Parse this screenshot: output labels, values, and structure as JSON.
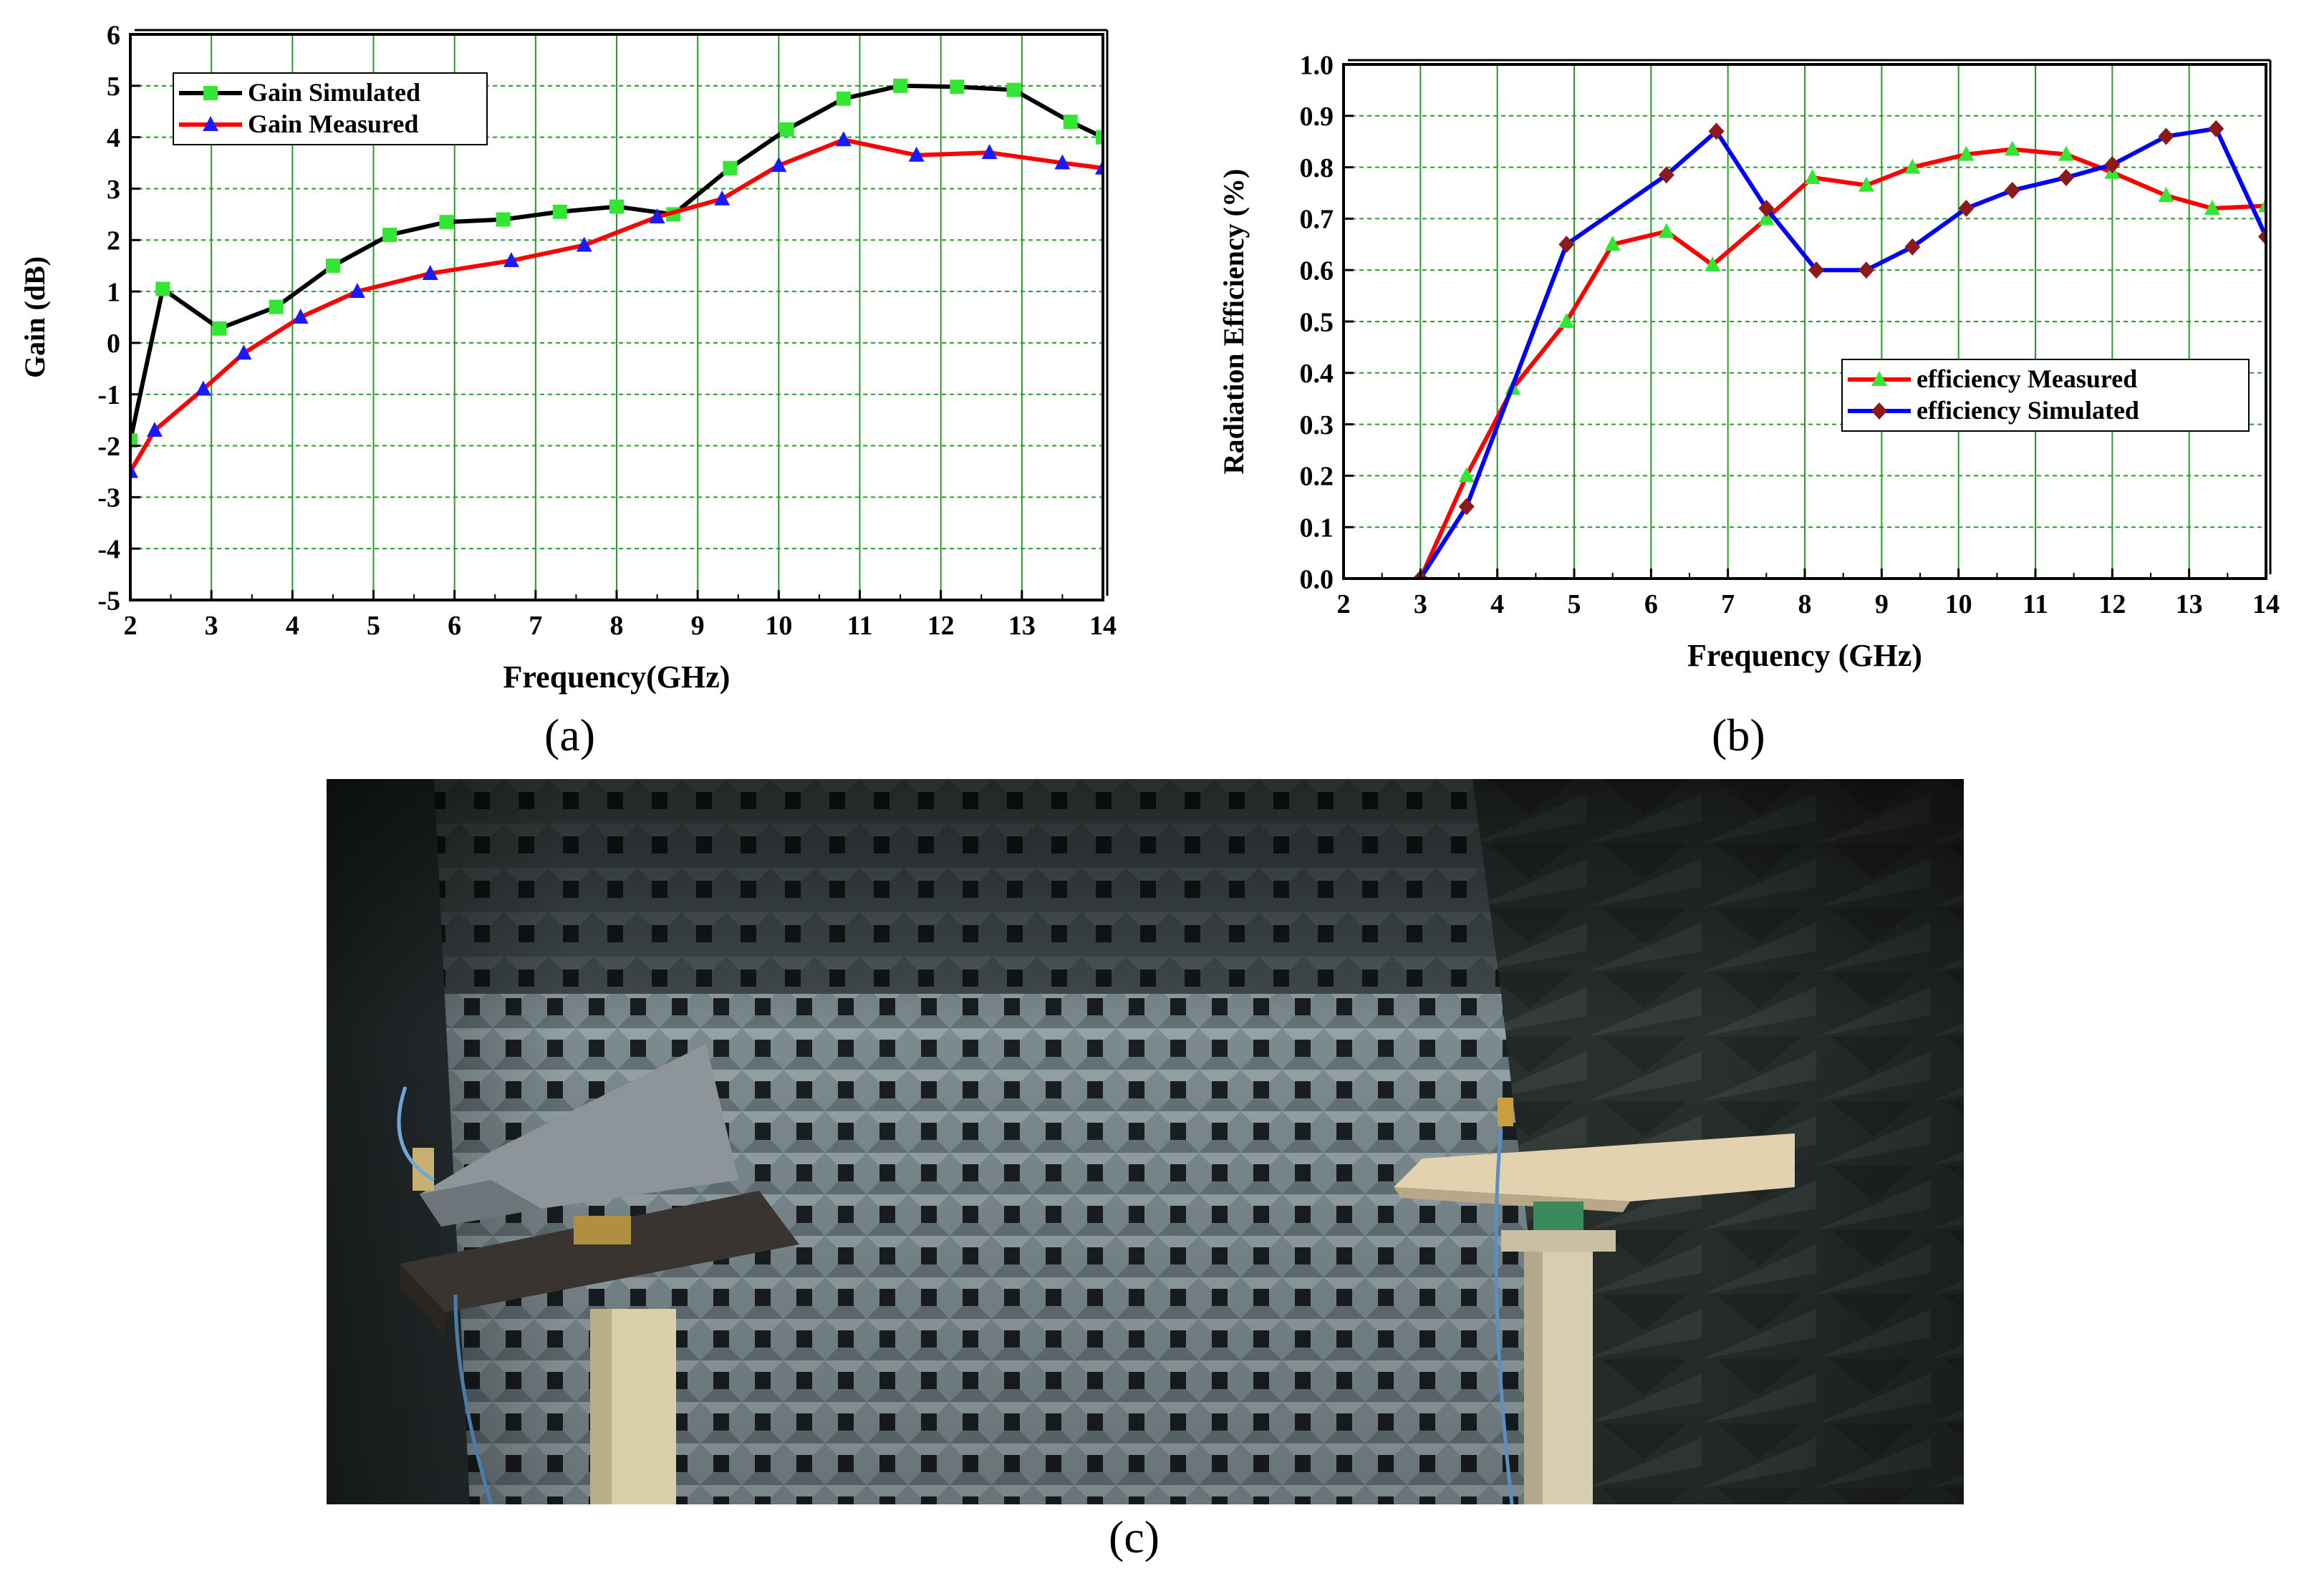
{
  "chart_data": [
    {
      "type": "line",
      "xlabel": "Frequency(GHz)",
      "ylabel": "Gain (dB)",
      "xlim": [
        2,
        14
      ],
      "ylim": [
        -5,
        6
      ],
      "xticks": [
        "2",
        "3",
        "4",
        "5",
        "6",
        "7",
        "8",
        "9",
        "10",
        "11",
        "12",
        "13",
        "14"
      ],
      "yticks": [
        "6",
        "5",
        "4",
        "3",
        "2",
        "1",
        "0",
        "-1",
        "-2",
        "-3",
        "-4",
        "-5"
      ],
      "grid": true,
      "legend_position": "top-left",
      "series": [
        {
          "name": "Gain Simulated",
          "color": "#000000",
          "marker": "square",
          "marker_color": "#33e633",
          "x": [
            2.0,
            2.4,
            3.1,
            3.8,
            4.5,
            5.2,
            5.9,
            6.6,
            7.3,
            8.0,
            8.7,
            9.4,
            10.1,
            10.8,
            11.5,
            12.2,
            12.9,
            13.6,
            14.0
          ],
          "values": [
            -1.9,
            1.05,
            0.28,
            0.7,
            1.5,
            2.1,
            2.35,
            2.4,
            2.55,
            2.65,
            2.5,
            3.4,
            4.15,
            4.75,
            5.0,
            4.98,
            4.92,
            4.3,
            4.0
          ]
        },
        {
          "name": "Gain Measured",
          "color": "#ff0000",
          "marker": "triangle",
          "marker_color": "#1a1aff",
          "x": [
            2.0,
            2.3,
            2.9,
            3.4,
            4.1,
            4.8,
            5.7,
            6.7,
            7.6,
            8.5,
            9.3,
            10.0,
            10.8,
            11.7,
            12.6,
            13.5,
            14.0
          ],
          "values": [
            -2.5,
            -1.7,
            -0.9,
            -0.2,
            0.5,
            1.0,
            1.35,
            1.6,
            1.9,
            2.45,
            2.8,
            3.45,
            3.95,
            3.65,
            3.7,
            3.5,
            3.4
          ]
        }
      ]
    },
    {
      "type": "line",
      "xlabel": "Frequency (GHz)",
      "ylabel": "Radiation Efficiency (%)",
      "xlim": [
        2,
        14
      ],
      "ylim": [
        0,
        1
      ],
      "xticks": [
        "2",
        "3",
        "4",
        "5",
        "6",
        "7",
        "8",
        "9",
        "10",
        "11",
        "12",
        "13",
        "14"
      ],
      "yticks": [
        "1.0",
        "0.9",
        "0.8",
        "0.7",
        "0.6",
        "0.5",
        "0.4",
        "0.3",
        "0.2",
        "0.1",
        "0.0"
      ],
      "grid": true,
      "legend_position": "center-right",
      "series": [
        {
          "name": "efficiency Measured",
          "color": "#ff0000",
          "marker": "triangle",
          "marker_color": "#33e633",
          "x": [
            3.0,
            3.6,
            4.2,
            4.9,
            5.5,
            6.2,
            6.8,
            7.5,
            8.1,
            8.8,
            9.4,
            10.1,
            10.7,
            11.4,
            12.0,
            12.7,
            13.3,
            14.0
          ],
          "values": [
            0.0,
            0.2,
            0.37,
            0.5,
            0.65,
            0.675,
            0.61,
            0.7,
            0.78,
            0.765,
            0.8,
            0.825,
            0.835,
            0.825,
            0.79,
            0.745,
            0.72,
            0.725
          ]
        },
        {
          "name": "efficiency Simulated",
          "color": "#0000ff",
          "marker": "diamond",
          "marker_color": "#8b1a1a",
          "x": [
            3.0,
            3.6,
            4.9,
            6.2,
            6.85,
            7.5,
            8.15,
            8.8,
            9.4,
            10.1,
            10.7,
            11.4,
            12.0,
            12.7,
            13.35,
            14.0
          ],
          "values": [
            0.0,
            0.14,
            0.65,
            0.785,
            0.87,
            0.72,
            0.6,
            0.6,
            0.645,
            0.72,
            0.755,
            0.78,
            0.805,
            0.86,
            0.875,
            0.665
          ]
        }
      ]
    }
  ],
  "captions": {
    "a": "(a)",
    "b": "(b)",
    "c": "(c)"
  }
}
